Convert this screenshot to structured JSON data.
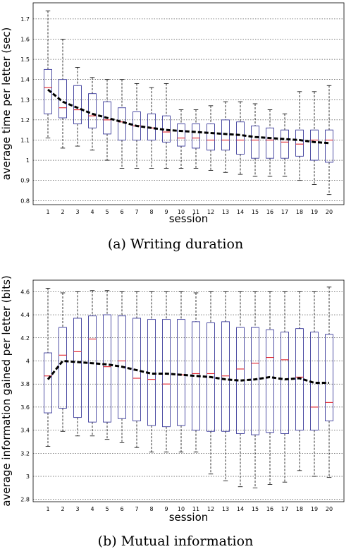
{
  "chart_data": [
    {
      "type": "boxplot",
      "caption": "(a) Writing duration",
      "xlabel": "session",
      "ylabel": "average time per letter (sec)",
      "ylim": [
        0.78,
        1.78
      ],
      "yticks": [
        0.8,
        0.9,
        1,
        1.1,
        1.2,
        1.3,
        1.4,
        1.5,
        1.6,
        1.7
      ],
      "ytick_labels": [
        "0.8",
        "0.9",
        "1",
        "1.1",
        "1.2",
        "1.3",
        "1.4",
        "1.5",
        "1.6",
        "1.7"
      ],
      "categories": [
        "1",
        "2",
        "3",
        "4",
        "5",
        "6",
        "7",
        "8",
        "9",
        "10",
        "11",
        "12",
        "13",
        "14",
        "15",
        "16",
        "17",
        "18",
        "19",
        "20"
      ],
      "grid": "horizontal dashed",
      "box_color": "#3b3b9b",
      "median_color": "#e0202a",
      "trend_color": "#000000",
      "boxes": [
        {
          "min": 1.11,
          "q1": 1.23,
          "median": 1.36,
          "q3": 1.45,
          "max": 1.74
        },
        {
          "min": 1.06,
          "q1": 1.21,
          "median": 1.26,
          "q3": 1.4,
          "max": 1.6
        },
        {
          "min": 1.07,
          "q1": 1.18,
          "median": 1.25,
          "q3": 1.37,
          "max": 1.46
        },
        {
          "min": 1.05,
          "q1": 1.16,
          "median": 1.22,
          "q3": 1.33,
          "max": 1.41
        },
        {
          "min": 1.0,
          "q1": 1.13,
          "median": 1.2,
          "q3": 1.29,
          "max": 1.4
        },
        {
          "min": 0.96,
          "q1": 1.1,
          "median": 1.19,
          "q3": 1.26,
          "max": 1.4
        },
        {
          "min": 0.96,
          "q1": 1.1,
          "median": 1.17,
          "q3": 1.24,
          "max": 1.38
        },
        {
          "min": 0.96,
          "q1": 1.1,
          "median": 1.16,
          "q3": 1.23,
          "max": 1.36
        },
        {
          "min": 0.96,
          "q1": 1.09,
          "median": 1.14,
          "q3": 1.22,
          "max": 1.38
        },
        {
          "min": 0.96,
          "q1": 1.07,
          "median": 1.11,
          "q3": 1.18,
          "max": 1.25
        },
        {
          "min": 0.96,
          "q1": 1.06,
          "median": 1.11,
          "q3": 1.18,
          "max": 1.25
        },
        {
          "min": 0.95,
          "q1": 1.05,
          "median": 1.1,
          "q3": 1.18,
          "max": 1.27
        },
        {
          "min": 0.94,
          "q1": 1.05,
          "median": 1.1,
          "q3": 1.2,
          "max": 1.29
        },
        {
          "min": 0.93,
          "q1": 1.03,
          "median": 1.1,
          "q3": 1.19,
          "max": 1.29
        },
        {
          "min": 0.92,
          "q1": 1.01,
          "median": 1.1,
          "q3": 1.17,
          "max": 1.28
        },
        {
          "min": 0.92,
          "q1": 1.01,
          "median": 1.1,
          "q3": 1.16,
          "max": 1.25
        },
        {
          "min": 0.92,
          "q1": 1.01,
          "median": 1.09,
          "q3": 1.15,
          "max": 1.23
        },
        {
          "min": 0.9,
          "q1": 1.02,
          "median": 1.08,
          "q3": 1.15,
          "max": 1.34
        },
        {
          "min": 0.88,
          "q1": 1.0,
          "median": 1.1,
          "q3": 1.15,
          "max": 1.34
        },
        {
          "min": 0.83,
          "q1": 0.99,
          "median": 1.1,
          "q3": 1.15,
          "max": 1.37
        }
      ],
      "trend": [
        1.35,
        1.29,
        1.26,
        1.23,
        1.21,
        1.19,
        1.17,
        1.16,
        1.15,
        1.145,
        1.14,
        1.135,
        1.13,
        1.125,
        1.115,
        1.11,
        1.105,
        1.1,
        1.09,
        1.085
      ]
    },
    {
      "type": "boxplot",
      "caption": "(b) Mutual information",
      "xlabel": "session",
      "ylabel": "average information gained per letter (bits)",
      "ylim": [
        2.78,
        4.7
      ],
      "yticks": [
        2.8,
        3,
        3.2,
        3.4,
        3.6,
        3.8,
        4,
        4.2,
        4.4,
        4.6
      ],
      "ytick_labels": [
        "2.8",
        "3",
        "3.2",
        "3.4",
        "3.6",
        "3.8",
        "4",
        "4.2",
        "4.4",
        "4.6"
      ],
      "categories": [
        "1",
        "2",
        "3",
        "4",
        "5",
        "6",
        "7",
        "8",
        "9",
        "10",
        "11",
        "12",
        "13",
        "14",
        "15",
        "16",
        "17",
        "18",
        "19",
        "20"
      ],
      "grid": "horizontal dashed",
      "box_color": "#3b3b9b",
      "median_color": "#e0202a",
      "trend_color": "#000000",
      "boxes": [
        {
          "min": 3.26,
          "q1": 3.55,
          "median": 3.87,
          "q3": 4.07,
          "max": 4.63
        },
        {
          "min": 3.39,
          "q1": 3.59,
          "median": 4.05,
          "q3": 4.29,
          "max": 4.59
        },
        {
          "min": 3.35,
          "q1": 3.51,
          "median": 4.08,
          "q3": 4.37,
          "max": 4.6
        },
        {
          "min": 3.35,
          "q1": 3.47,
          "median": 4.19,
          "q3": 4.39,
          "max": 4.61
        },
        {
          "min": 3.32,
          "q1": 3.47,
          "median": 3.95,
          "q3": 4.4,
          "max": 4.61
        },
        {
          "min": 3.29,
          "q1": 3.5,
          "median": 4.0,
          "q3": 4.39,
          "max": 4.6
        },
        {
          "min": 3.25,
          "q1": 3.48,
          "median": 3.85,
          "q3": 4.37,
          "max": 4.6
        },
        {
          "min": 3.21,
          "q1": 3.44,
          "median": 3.84,
          "q3": 4.36,
          "max": 4.6
        },
        {
          "min": 3.21,
          "q1": 3.43,
          "median": 3.8,
          "q3": 4.36,
          "max": 4.6
        },
        {
          "min": 3.21,
          "q1": 3.44,
          "median": 3.88,
          "q3": 4.36,
          "max": 4.6
        },
        {
          "min": 3.21,
          "q1": 3.4,
          "median": 3.89,
          "q3": 4.34,
          "max": 4.59
        },
        {
          "min": 3.02,
          "q1": 3.39,
          "median": 3.89,
          "q3": 4.33,
          "max": 4.6
        },
        {
          "min": 2.96,
          "q1": 3.39,
          "median": 3.87,
          "q3": 4.34,
          "max": 4.6
        },
        {
          "min": 2.91,
          "q1": 3.37,
          "median": 3.93,
          "q3": 4.29,
          "max": 4.6
        },
        {
          "min": 2.9,
          "q1": 3.36,
          "median": 3.98,
          "q3": 4.29,
          "max": 4.6
        },
        {
          "min": 2.93,
          "q1": 3.38,
          "median": 4.03,
          "q3": 4.27,
          "max": 4.6
        },
        {
          "min": 2.95,
          "q1": 3.37,
          "median": 4.01,
          "q3": 4.25,
          "max": 4.6
        },
        {
          "min": 3.05,
          "q1": 3.4,
          "median": 3.86,
          "q3": 4.28,
          "max": 4.6
        },
        {
          "min": 3.0,
          "q1": 3.4,
          "median": 3.6,
          "q3": 4.25,
          "max": 4.6
        },
        {
          "min": 2.99,
          "q1": 3.48,
          "median": 3.64,
          "q3": 4.23,
          "max": 4.64
        }
      ],
      "trend": [
        3.84,
        4.0,
        3.99,
        3.98,
        3.97,
        3.95,
        3.92,
        3.89,
        3.89,
        3.88,
        3.87,
        3.86,
        3.84,
        3.83,
        3.84,
        3.86,
        3.84,
        3.85,
        3.81,
        3.81
      ]
    }
  ]
}
